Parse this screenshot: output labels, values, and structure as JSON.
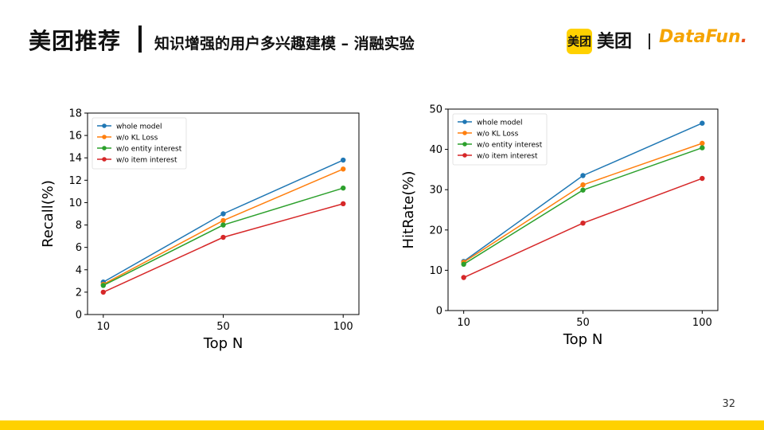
{
  "header": {
    "brand": "美团推荐",
    "subtitle": "知识增强的用户多兴趣建模 – 消融实验",
    "logo_badge": "美团",
    "logo_text": "美团",
    "partner_logo": "DataFun",
    "partner_dot": "."
  },
  "page_number": "32",
  "colors": {
    "whole_model": "#1f77b4",
    "wo_kl": "#ff7f0e",
    "wo_entity": "#2ca02c",
    "wo_item": "#d62728",
    "brand_yellow": "#ffd100"
  },
  "chart_data": [
    {
      "id": "recall",
      "type": "line",
      "categories": [
        "10",
        "50",
        "100"
      ],
      "xlabel": "Top N",
      "ylabel": "Recall(%)",
      "ylim": [
        0,
        18
      ],
      "yticks": [
        0,
        2,
        4,
        6,
        8,
        10,
        12,
        14,
        16,
        18
      ],
      "legend_position": "top-left",
      "series": [
        {
          "name": "whole model",
          "color": "#1f77b4",
          "values": [
            2.9,
            9.0,
            13.8
          ]
        },
        {
          "name": "w/o KL Loss",
          "color": "#ff7f0e",
          "values": [
            2.7,
            8.4,
            13.0
          ]
        },
        {
          "name": "w/o entity interest",
          "color": "#2ca02c",
          "values": [
            2.6,
            8.0,
            11.3
          ]
        },
        {
          "name": "w/o item interest",
          "color": "#d62728",
          "values": [
            2.0,
            6.9,
            9.9
          ]
        }
      ]
    },
    {
      "id": "hit",
      "type": "line",
      "categories": [
        "10",
        "50",
        "100"
      ],
      "xlabel": "Top N",
      "ylabel": "HitRate(%)",
      "ylim": [
        0,
        50
      ],
      "yticks": [
        0,
        10,
        20,
        30,
        40,
        50
      ],
      "legend_position": "top-left",
      "series": [
        {
          "name": "whole model",
          "color": "#1f77b4",
          "values": [
            12.2,
            33.5,
            46.5
          ]
        },
        {
          "name": "w/o KL Loss",
          "color": "#ff7f0e",
          "values": [
            12.0,
            31.2,
            41.5
          ]
        },
        {
          "name": "w/o entity interest",
          "color": "#2ca02c",
          "values": [
            11.5,
            29.9,
            40.4
          ]
        },
        {
          "name": "w/o item interest",
          "color": "#d62728",
          "values": [
            8.2,
            21.7,
            32.8
          ]
        }
      ]
    }
  ]
}
